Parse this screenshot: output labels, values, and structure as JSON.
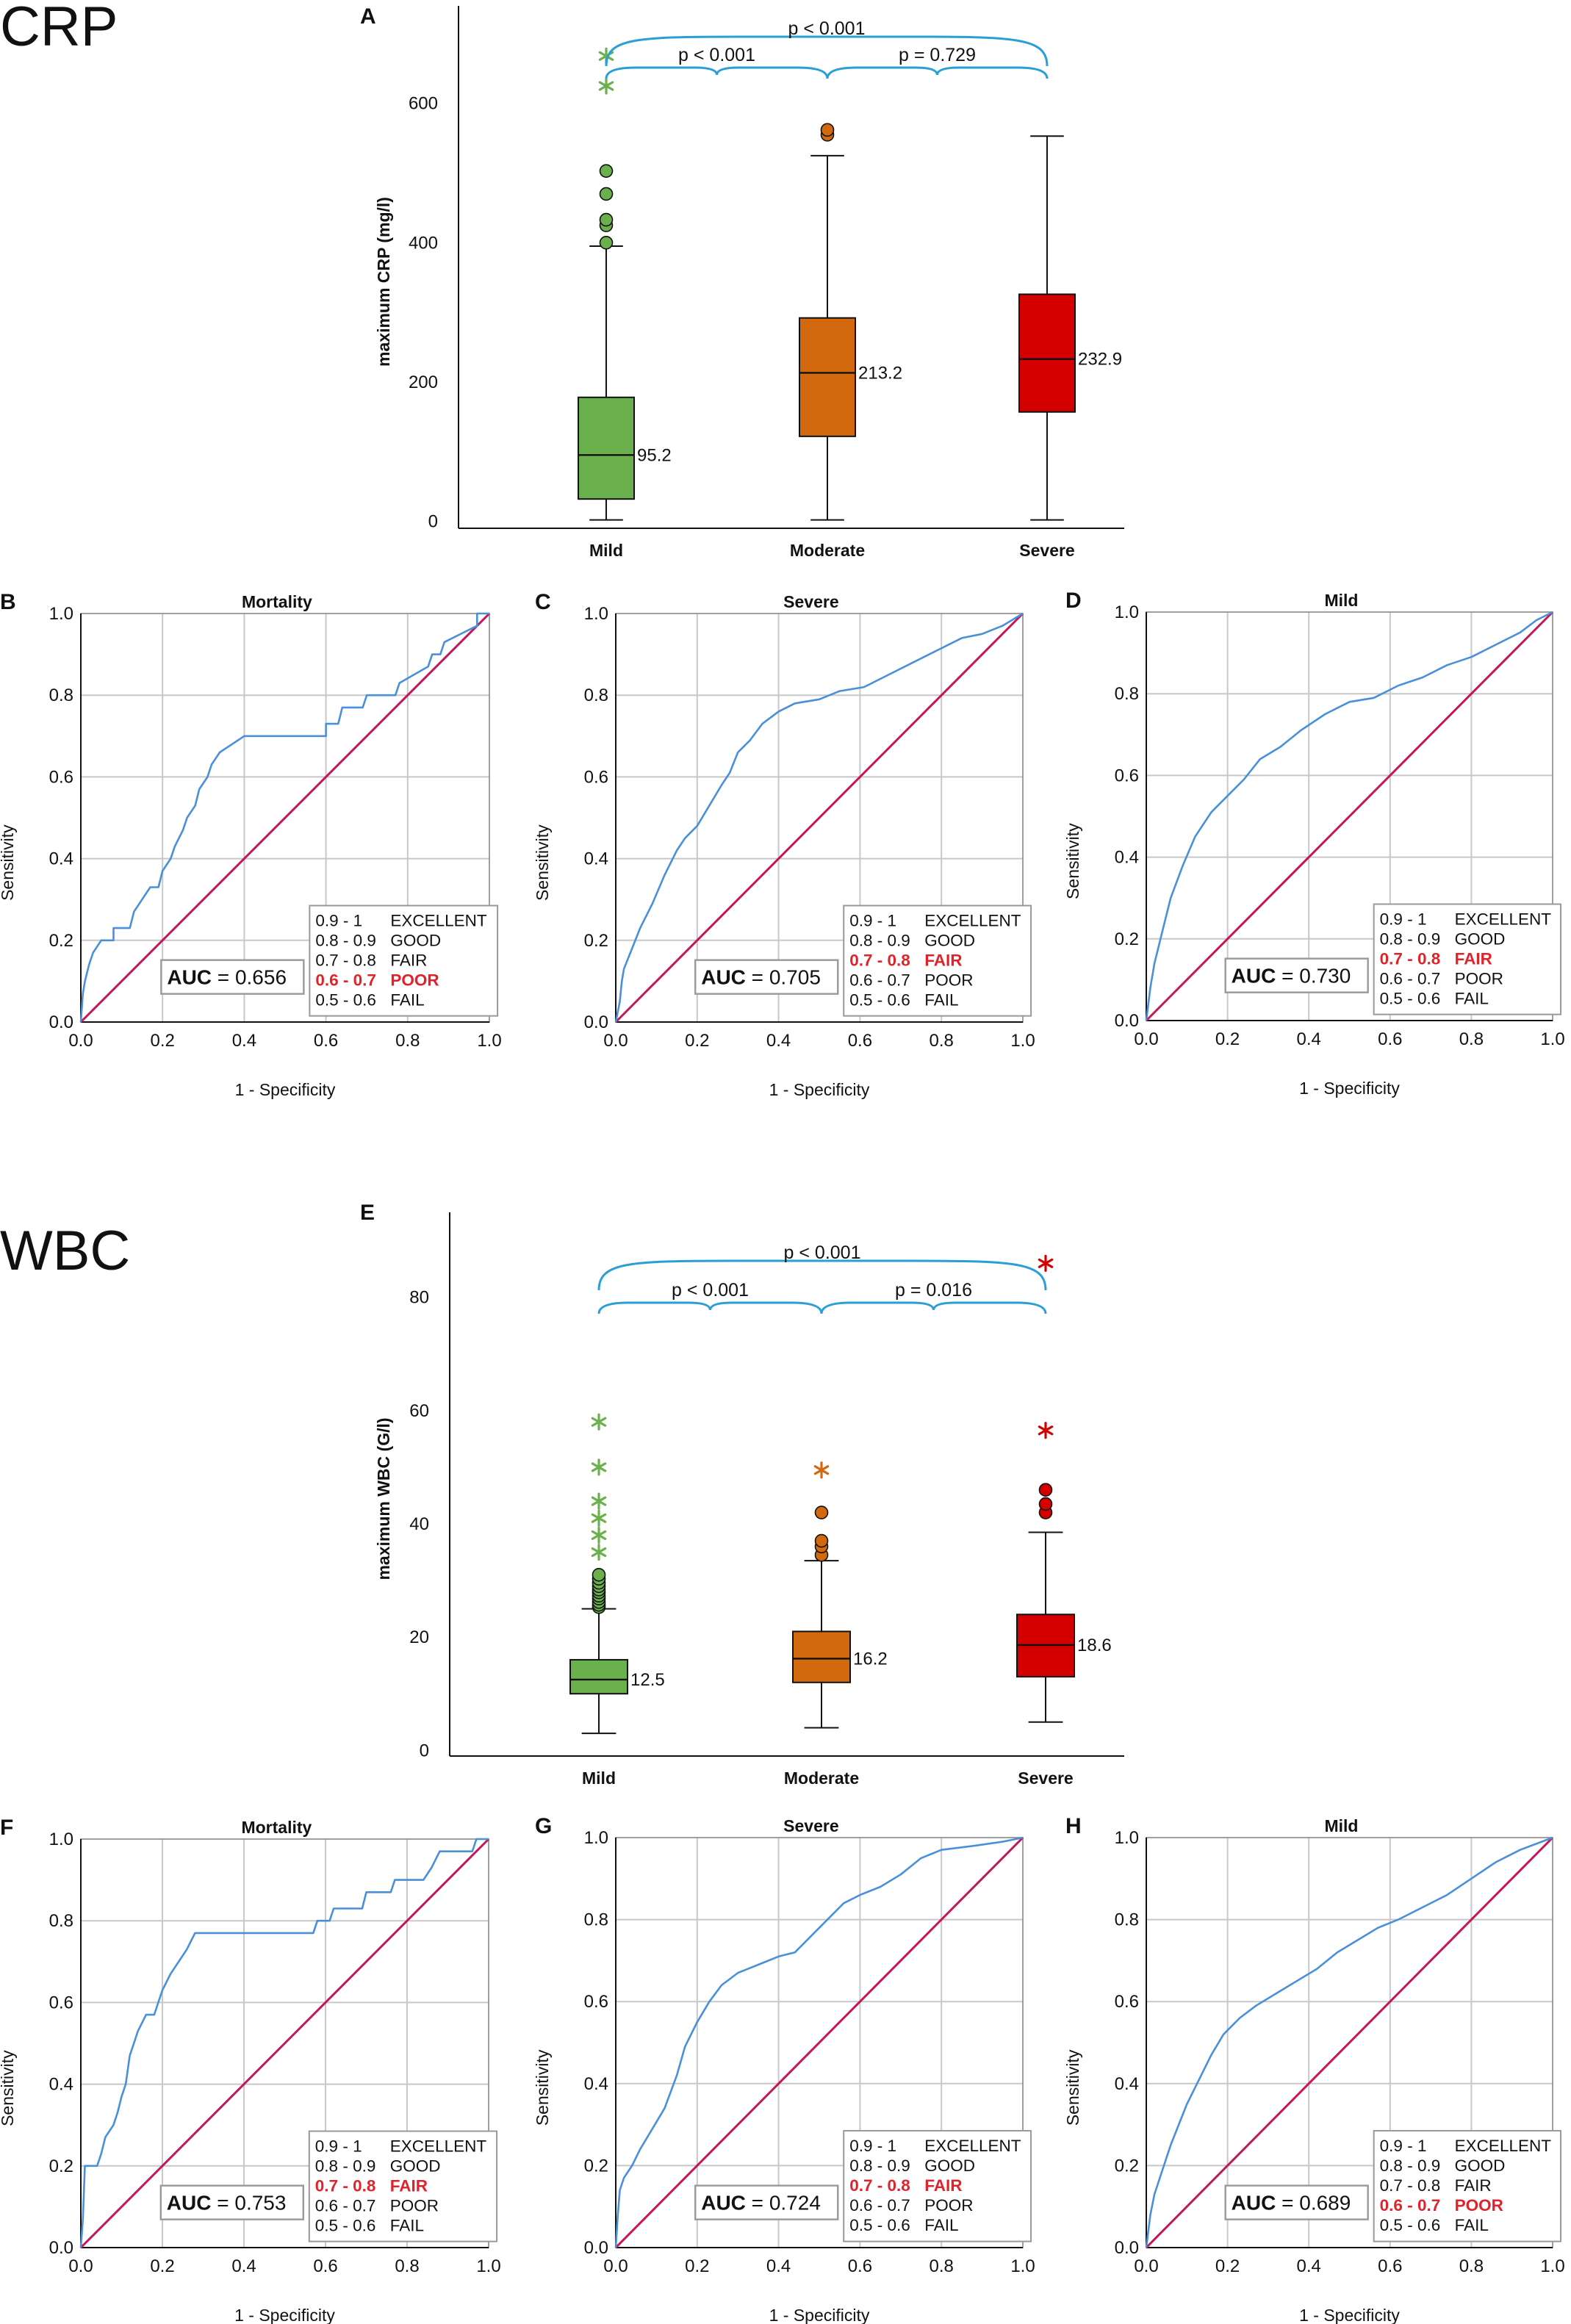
{
  "figure": {
    "sections": [
      {
        "id": "crp",
        "title": "CRP"
      },
      {
        "id": "wbc",
        "title": "WBC"
      }
    ],
    "legend_rows": [
      {
        "range": "0.9 - 1",
        "grade": "EXCELLENT"
      },
      {
        "range": "0.8 - 0.9",
        "grade": "GOOD"
      },
      {
        "range": "0.7 - 0.8",
        "grade": "FAIR"
      },
      {
        "range": "0.6 - 0.7",
        "grade": "POOR"
      },
      {
        "range": "0.5 - 0.6",
        "grade": "FAIL"
      }
    ],
    "colors": {
      "mild": "#6ab04c",
      "moderate": "#d2690e",
      "severe": "#d40000",
      "roc_curve": "#4a90d9",
      "diagonal": "#c2185b",
      "bracket": "#2a9fd6",
      "grid": "#c8c8c8",
      "highlight": "#e0232a"
    }
  },
  "chart_data": [
    {
      "panel": "A",
      "type": "box",
      "title": "",
      "ylabel": "maximum CRP (mg/l)",
      "ylim": [
        -10,
        740
      ],
      "yticks": [
        0,
        200,
        400,
        600
      ],
      "categories": [
        "Mild",
        "Moderate",
        "Severe"
      ],
      "boxes": [
        {
          "category": "Mild",
          "color_key": "mild",
          "whisker_low": 2,
          "q1": 32,
          "median": 95.2,
          "q3": 178,
          "whisker_high": 395,
          "median_label": "95.2",
          "outliers_circle": [
            400,
            425,
            433,
            470,
            503
          ],
          "outliers_star": [
            625,
            668
          ]
        },
        {
          "category": "Moderate",
          "color_key": "moderate",
          "whisker_low": 2,
          "q1": 122,
          "median": 213.2,
          "q3": 292,
          "whisker_high": 525,
          "median_label": "213.2",
          "outliers_circle": [
            555,
            562
          ],
          "outliers_star": []
        },
        {
          "category": "Severe",
          "color_key": "severe",
          "whisker_low": 2,
          "q1": 157,
          "median": 232.9,
          "q3": 326,
          "whisker_high": 553,
          "median_label": "232.9",
          "outliers_circle": [],
          "outliers_star": []
        }
      ],
      "comparisons": [
        {
          "from": "Mild",
          "to": "Severe",
          "label": "p < 0.001",
          "level": "top"
        },
        {
          "from": "Mild",
          "to": "Moderate",
          "label": "p < 0.001",
          "level": "low"
        },
        {
          "from": "Moderate",
          "to": "Severe",
          "label": "p = 0.729",
          "level": "low"
        }
      ]
    },
    {
      "panel": "B",
      "type": "line",
      "title": "Mortality",
      "xlabel": "1 - Specificity",
      "ylabel": "Sensitivity",
      "xlim": [
        0,
        1
      ],
      "ylim": [
        0,
        1
      ],
      "ticks": [
        "0.0",
        "0.2",
        "0.4",
        "0.6",
        "0.8",
        "1.0"
      ],
      "auc_label": "AUC",
      "auc_value": "= 0.656",
      "highlight_row": 3,
      "curve": [
        [
          0,
          0
        ],
        [
          0.005,
          0.07
        ],
        [
          0.01,
          0.1
        ],
        [
          0.02,
          0.14
        ],
        [
          0.03,
          0.17
        ],
        [
          0.05,
          0.2
        ],
        [
          0.08,
          0.2
        ],
        [
          0.08,
          0.23
        ],
        [
          0.12,
          0.23
        ],
        [
          0.13,
          0.27
        ],
        [
          0.15,
          0.3
        ],
        [
          0.17,
          0.33
        ],
        [
          0.19,
          0.33
        ],
        [
          0.2,
          0.37
        ],
        [
          0.22,
          0.4
        ],
        [
          0.23,
          0.43
        ],
        [
          0.25,
          0.47
        ],
        [
          0.26,
          0.5
        ],
        [
          0.28,
          0.53
        ],
        [
          0.29,
          0.57
        ],
        [
          0.31,
          0.6
        ],
        [
          0.32,
          0.63
        ],
        [
          0.34,
          0.66
        ],
        [
          0.37,
          0.68
        ],
        [
          0.4,
          0.7
        ],
        [
          0.6,
          0.7
        ],
        [
          0.6,
          0.73
        ],
        [
          0.63,
          0.73
        ],
        [
          0.64,
          0.77
        ],
        [
          0.69,
          0.77
        ],
        [
          0.7,
          0.8
        ],
        [
          0.77,
          0.8
        ],
        [
          0.78,
          0.83
        ],
        [
          0.85,
          0.87
        ],
        [
          0.86,
          0.9
        ],
        [
          0.88,
          0.9
        ],
        [
          0.89,
          0.93
        ],
        [
          0.97,
          0.97
        ],
        [
          0.97,
          1.0
        ],
        [
          1.0,
          1.0
        ]
      ]
    },
    {
      "panel": "C",
      "type": "line",
      "title": "Severe",
      "xlabel": "1 - Specificity",
      "ylabel": "Sensitivity",
      "xlim": [
        0,
        1
      ],
      "ylim": [
        0,
        1
      ],
      "ticks": [
        "0.0",
        "0.2",
        "0.4",
        "0.6",
        "0.8",
        "1.0"
      ],
      "auc_label": "AUC",
      "auc_value": "= 0.705",
      "highlight_row": 2,
      "curve": [
        [
          0,
          0
        ],
        [
          0.01,
          0.05
        ],
        [
          0.015,
          0.1
        ],
        [
          0.02,
          0.13
        ],
        [
          0.04,
          0.18
        ],
        [
          0.06,
          0.23
        ],
        [
          0.09,
          0.29
        ],
        [
          0.12,
          0.36
        ],
        [
          0.15,
          0.42
        ],
        [
          0.17,
          0.45
        ],
        [
          0.2,
          0.48
        ],
        [
          0.23,
          0.53
        ],
        [
          0.26,
          0.58
        ],
        [
          0.28,
          0.61
        ],
        [
          0.3,
          0.66
        ],
        [
          0.33,
          0.69
        ],
        [
          0.36,
          0.73
        ],
        [
          0.4,
          0.76
        ],
        [
          0.44,
          0.78
        ],
        [
          0.5,
          0.79
        ],
        [
          0.55,
          0.81
        ],
        [
          0.61,
          0.82
        ],
        [
          0.67,
          0.85
        ],
        [
          0.73,
          0.88
        ],
        [
          0.79,
          0.91
        ],
        [
          0.85,
          0.94
        ],
        [
          0.9,
          0.95
        ],
        [
          0.95,
          0.97
        ],
        [
          1.0,
          1.0
        ]
      ]
    },
    {
      "panel": "D",
      "type": "line",
      "title": "Mild",
      "xlabel": "1 - Specificity",
      "ylabel": "Sensitivity",
      "xlim": [
        0,
        1
      ],
      "ylim": [
        0,
        1
      ],
      "ticks": [
        "0.0",
        "0.2",
        "0.4",
        "0.6",
        "0.8",
        "1.0"
      ],
      "auc_label": "AUC",
      "auc_value": "= 0.730",
      "highlight_row": 2,
      "curve": [
        [
          0,
          0
        ],
        [
          0.01,
          0.08
        ],
        [
          0.02,
          0.14
        ],
        [
          0.04,
          0.22
        ],
        [
          0.06,
          0.3
        ],
        [
          0.09,
          0.38
        ],
        [
          0.12,
          0.45
        ],
        [
          0.16,
          0.51
        ],
        [
          0.2,
          0.55
        ],
        [
          0.24,
          0.59
        ],
        [
          0.28,
          0.64
        ],
        [
          0.33,
          0.67
        ],
        [
          0.38,
          0.71
        ],
        [
          0.44,
          0.75
        ],
        [
          0.5,
          0.78
        ],
        [
          0.56,
          0.79
        ],
        [
          0.62,
          0.82
        ],
        [
          0.68,
          0.84
        ],
        [
          0.74,
          0.87
        ],
        [
          0.8,
          0.89
        ],
        [
          0.86,
          0.92
        ],
        [
          0.92,
          0.95
        ],
        [
          0.96,
          0.98
        ],
        [
          1.0,
          1.0
        ]
      ]
    },
    {
      "panel": "E",
      "type": "box",
      "title": "",
      "ylabel": "maximum WBC (G/l)",
      "ylim": [
        -1,
        95
      ],
      "yticks": [
        0,
        20,
        40,
        60,
        80
      ],
      "categories": [
        "Mild",
        "Moderate",
        "Severe"
      ],
      "boxes": [
        {
          "category": "Mild",
          "color_key": "mild",
          "whisker_low": 3,
          "q1": 10,
          "median": 12.5,
          "q3": 16,
          "whisker_high": 25,
          "median_label": "12.5",
          "outliers_circle": [
            25.3,
            25.7,
            26.2,
            26.8,
            27.3,
            27.9,
            28.4,
            29,
            29.6,
            30.3,
            31
          ],
          "outliers_star": [
            35,
            38,
            41,
            44,
            50,
            58
          ]
        },
        {
          "category": "Moderate",
          "color_key": "moderate",
          "whisker_low": 4,
          "q1": 12,
          "median": 16.2,
          "q3": 21,
          "whisker_high": 33.5,
          "median_label": "16.2",
          "outliers_circle": [
            34.5,
            36,
            37,
            42
          ],
          "outliers_star": [
            49.5
          ]
        },
        {
          "category": "Severe",
          "color_key": "severe",
          "whisker_low": 5,
          "q1": 13,
          "median": 18.6,
          "q3": 24,
          "whisker_high": 38.5,
          "median_label": "18.6",
          "outliers_circle": [
            42,
            43.5,
            46
          ],
          "outliers_star": [
            56.5,
            86
          ]
        }
      ],
      "comparisons": [
        {
          "from": "Mild",
          "to": "Severe",
          "label": "p < 0.001",
          "level": "top"
        },
        {
          "from": "Mild",
          "to": "Moderate",
          "label": "p < 0.001",
          "level": "low"
        },
        {
          "from": "Moderate",
          "to": "Severe",
          "label": "p = 0.016",
          "level": "low"
        }
      ]
    },
    {
      "panel": "F",
      "type": "line",
      "title": "Mortality",
      "xlabel": "1 - Specificity",
      "ylabel": "Sensitivity",
      "xlim": [
        0,
        1
      ],
      "ylim": [
        0,
        1
      ],
      "ticks": [
        "0.0",
        "0.2",
        "0.4",
        "0.6",
        "0.8",
        "1.0"
      ],
      "auc_label": "AUC",
      "auc_value": "= 0.753",
      "highlight_row": 2,
      "curve": [
        [
          0,
          0
        ],
        [
          0.005,
          0.07
        ],
        [
          0.01,
          0.2
        ],
        [
          0.04,
          0.2
        ],
        [
          0.05,
          0.23
        ],
        [
          0.06,
          0.27
        ],
        [
          0.08,
          0.3
        ],
        [
          0.09,
          0.33
        ],
        [
          0.1,
          0.37
        ],
        [
          0.11,
          0.4
        ],
        [
          0.12,
          0.47
        ],
        [
          0.13,
          0.5
        ],
        [
          0.14,
          0.53
        ],
        [
          0.16,
          0.57
        ],
        [
          0.18,
          0.57
        ],
        [
          0.19,
          0.6
        ],
        [
          0.2,
          0.63
        ],
        [
          0.22,
          0.67
        ],
        [
          0.24,
          0.7
        ],
        [
          0.26,
          0.73
        ],
        [
          0.28,
          0.77
        ],
        [
          0.57,
          0.77
        ],
        [
          0.58,
          0.8
        ],
        [
          0.61,
          0.8
        ],
        [
          0.62,
          0.83
        ],
        [
          0.69,
          0.83
        ],
        [
          0.7,
          0.87
        ],
        [
          0.76,
          0.87
        ],
        [
          0.77,
          0.9
        ],
        [
          0.84,
          0.9
        ],
        [
          0.86,
          0.93
        ],
        [
          0.88,
          0.97
        ],
        [
          0.96,
          0.97
        ],
        [
          0.97,
          1.0
        ],
        [
          1.0,
          1.0
        ]
      ]
    },
    {
      "panel": "G",
      "type": "line",
      "title": "Severe",
      "xlabel": "1 - Specificity",
      "ylabel": "Sensitivity",
      "xlim": [
        0,
        1
      ],
      "ylim": [
        0,
        1
      ],
      "ticks": [
        "0.0",
        "0.2",
        "0.4",
        "0.6",
        "0.8",
        "1.0"
      ],
      "auc_label": "AUC",
      "auc_value": "= 0.724",
      "highlight_row": 2,
      "curve": [
        [
          0,
          0
        ],
        [
          0.005,
          0.08
        ],
        [
          0.01,
          0.14
        ],
        [
          0.02,
          0.17
        ],
        [
          0.04,
          0.2
        ],
        [
          0.06,
          0.24
        ],
        [
          0.09,
          0.29
        ],
        [
          0.12,
          0.34
        ],
        [
          0.15,
          0.42
        ],
        [
          0.17,
          0.49
        ],
        [
          0.2,
          0.55
        ],
        [
          0.23,
          0.6
        ],
        [
          0.26,
          0.64
        ],
        [
          0.3,
          0.67
        ],
        [
          0.35,
          0.69
        ],
        [
          0.4,
          0.71
        ],
        [
          0.44,
          0.72
        ],
        [
          0.48,
          0.76
        ],
        [
          0.52,
          0.8
        ],
        [
          0.56,
          0.84
        ],
        [
          0.6,
          0.86
        ],
        [
          0.65,
          0.88
        ],
        [
          0.7,
          0.91
        ],
        [
          0.75,
          0.95
        ],
        [
          0.8,
          0.97
        ],
        [
          0.88,
          0.98
        ],
        [
          0.95,
          0.99
        ],
        [
          1.0,
          1.0
        ]
      ]
    },
    {
      "panel": "H",
      "type": "line",
      "title": "Mild",
      "xlabel": "1 - Specificity",
      "ylabel": "Sensitivity",
      "xlim": [
        0,
        1
      ],
      "ylim": [
        0,
        1
      ],
      "ticks": [
        "0.0",
        "0.2",
        "0.4",
        "0.6",
        "0.8",
        "1.0"
      ],
      "auc_label": "AUC",
      "auc_value": "= 0.689",
      "highlight_row": 3,
      "curve": [
        [
          0,
          0
        ],
        [
          0.01,
          0.08
        ],
        [
          0.02,
          0.13
        ],
        [
          0.04,
          0.19
        ],
        [
          0.06,
          0.25
        ],
        [
          0.08,
          0.3
        ],
        [
          0.1,
          0.35
        ],
        [
          0.13,
          0.41
        ],
        [
          0.16,
          0.47
        ],
        [
          0.19,
          0.52
        ],
        [
          0.23,
          0.56
        ],
        [
          0.27,
          0.59
        ],
        [
          0.32,
          0.62
        ],
        [
          0.37,
          0.65
        ],
        [
          0.42,
          0.68
        ],
        [
          0.47,
          0.72
        ],
        [
          0.52,
          0.75
        ],
        [
          0.57,
          0.78
        ],
        [
          0.62,
          0.8
        ],
        [
          0.68,
          0.83
        ],
        [
          0.74,
          0.86
        ],
        [
          0.8,
          0.9
        ],
        [
          0.86,
          0.94
        ],
        [
          0.92,
          0.97
        ],
        [
          1.0,
          1.0
        ]
      ]
    }
  ]
}
